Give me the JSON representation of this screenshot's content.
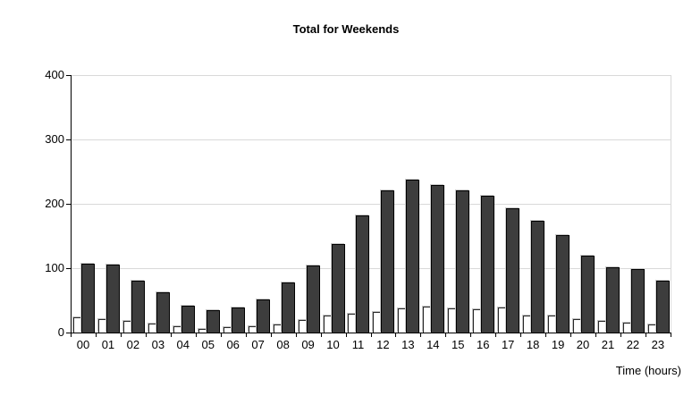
{
  "chart_data": {
    "type": "bar",
    "title": "Total for Weekends",
    "xlabel": "Time (hours)",
    "ylabel": "",
    "categories": [
      "00",
      "01",
      "02",
      "03",
      "04",
      "05",
      "06",
      "07",
      "08",
      "09",
      "10",
      "11",
      "12",
      "13",
      "14",
      "15",
      "16",
      "17",
      "18",
      "19",
      "20",
      "21",
      "22",
      "23"
    ],
    "series": [
      {
        "name": "series-white",
        "color": "#ffffff",
        "values": [
          24,
          21,
          18,
          14,
          10,
          6,
          8,
          10,
          12,
          19,
          27,
          29,
          32,
          38,
          40,
          37,
          36,
          39,
          27,
          26,
          21,
          18,
          15,
          13
        ]
      },
      {
        "name": "series-dark",
        "color": "#3d3d3d",
        "values": [
          107,
          105,
          80,
          63,
          41,
          35,
          39,
          52,
          78,
          104,
          137,
          182,
          221,
          237,
          229,
          221,
          212,
          193,
          174,
          152,
          120,
          101,
          98,
          81
        ]
      }
    ],
    "ylim": [
      0,
      400
    ],
    "yticks": [
      0,
      100,
      200,
      300,
      400
    ],
    "grid": true,
    "legend": "none",
    "gridline_color": "#d9d9d9",
    "axis_color": "#000000"
  }
}
